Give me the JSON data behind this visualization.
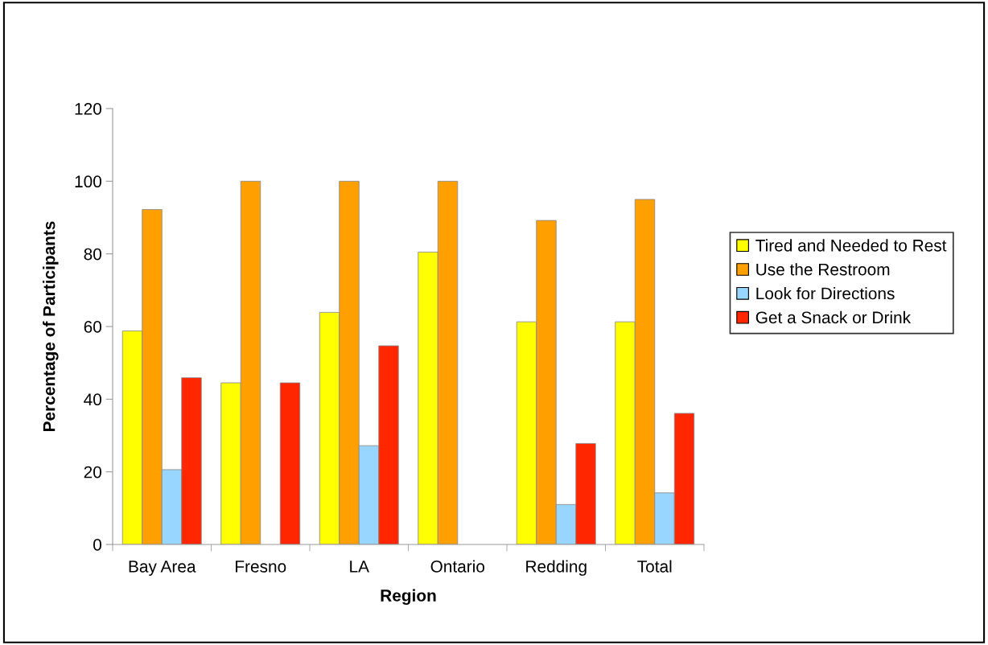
{
  "chart_data": {
    "type": "bar",
    "xlabel": "Region",
    "ylabel": "Percentage of Participants",
    "categories": [
      "Bay Area",
      "Fresno",
      "LA",
      "Ontario",
      "Redding",
      "Total"
    ],
    "series": [
      {
        "name": "Tired and Needed to Rest",
        "color": "#ffff00",
        "values": [
          58.8,
          44.5,
          63.9,
          80.5,
          61.3,
          61.3
        ]
      },
      {
        "name": "Use the Restroom",
        "color": "#ffa000",
        "values": [
          92.2,
          100,
          100,
          100,
          89.2,
          95.0
        ]
      },
      {
        "name": "Look for Directions",
        "color": "#99d6ff",
        "values": [
          20.6,
          null,
          27.2,
          null,
          11.0,
          14.2
        ]
      },
      {
        "name": "Get a Snack or Drink",
        "color": "#ff2600",
        "values": [
          45.9,
          44.5,
          54.7,
          null,
          27.8,
          36.1
        ]
      }
    ],
    "ylim": [
      0,
      120
    ],
    "yticks": [
      0,
      20,
      40,
      60,
      80,
      100,
      120
    ],
    "grid": false,
    "legend": "right"
  }
}
